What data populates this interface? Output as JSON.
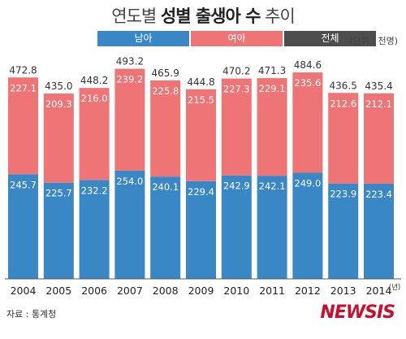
{
  "title": {
    "normal": "연도별",
    "strong": "성별 출생아 수",
    "tail": "추이"
  },
  "unit": "(단위 : 천명)",
  "source": "자료 : 통계청",
  "logo": "NEWSIS",
  "legend": [
    {
      "label": "남아",
      "color": "#3a87c6"
    },
    {
      "label": "여아",
      "color": "#ee7476"
    },
    {
      "label": "전체",
      "color": "#4d4d4d"
    }
  ],
  "chart_data": {
    "type": "bar",
    "stacked": true,
    "categories": [
      "2004",
      "2005",
      "2006",
      "2007",
      "2008",
      "2009",
      "2010",
      "2011",
      "2012",
      "2013",
      "2014"
    ],
    "x_unit_suffix": "(년)",
    "series": [
      {
        "name": "남아",
        "color": "#3a87c6",
        "values": [
          245.7,
          225.7,
          232.2,
          254.0,
          240.1,
          229.4,
          242.9,
          242.1,
          249.0,
          223.9,
          223.4
        ],
        "labels": [
          "245.7",
          "225.7",
          "232.2",
          "254.0",
          "240.1",
          "229.4",
          "242.9",
          "242.1",
          "249.0",
          "223.9",
          "223.4"
        ]
      },
      {
        "name": "여아",
        "color": "#ee7476",
        "values": [
          227.1,
          209.3,
          216.0,
          239.2,
          225.8,
          215.5,
          227.3,
          229.1,
          235.6,
          212.6,
          212.1
        ],
        "labels": [
          "227.1",
          "209.3",
          "216.0",
          "239.2",
          "225.8",
          "215.5",
          "227.3",
          "229.1",
          "235.6",
          "212.6",
          "212.1"
        ]
      }
    ],
    "totals": [
      472.8,
      435.0,
      448.2,
      493.2,
      465.9,
      444.8,
      470.2,
      471.3,
      484.6,
      436.5,
      435.4
    ],
    "total_labels": [
      "472.8",
      "435.0",
      "448.2",
      "493.2",
      "465.9",
      "444.8",
      "470.2",
      "471.3",
      "484.6",
      "436.5",
      "435.4"
    ],
    "ylim": [
      0,
      500
    ],
    "grid": false,
    "legend_position": "top"
  }
}
